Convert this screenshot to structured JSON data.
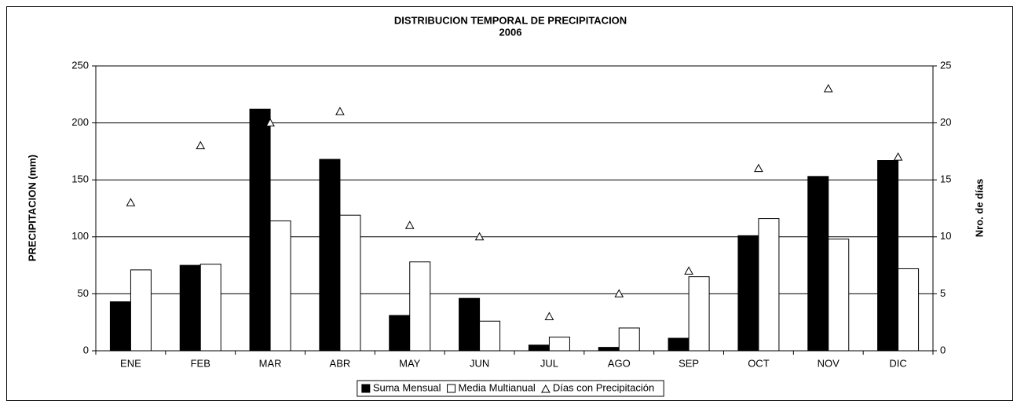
{
  "chart_data": {
    "type": "bar",
    "title": "DISTRIBUCION TEMPORAL DE PRECIPITACION",
    "subtitle": "2006",
    "y_label": "PRECIPITACION (mm)",
    "y2_label": "Nro. de días",
    "categories": [
      "ENE",
      "FEB",
      "MAR",
      "ABR",
      "MAY",
      "JUN",
      "JUL",
      "AGO",
      "SEP",
      "OCT",
      "NOV",
      "DIC"
    ],
    "series": [
      {
        "name": "Suma Mensual",
        "color": "#000000",
        "values": [
          43,
          75,
          212,
          168,
          31,
          46,
          5,
          3,
          11,
          101,
          153,
          167
        ]
      },
      {
        "name": "Media Multianual",
        "color": "#ffffff",
        "values": [
          71,
          76,
          114,
          119,
          78,
          26,
          12,
          20,
          65,
          116,
          98,
          72
        ]
      },
      {
        "name": "Días con Precipitación",
        "color": "#ffffff",
        "axis": "y2",
        "marker": "triangle",
        "values": [
          13,
          18,
          20,
          21,
          11,
          10,
          3,
          5,
          7,
          16,
          23,
          17
        ]
      }
    ],
    "ylim": [
      0,
      250
    ],
    "yticks": [
      0,
      50,
      100,
      150,
      200,
      250
    ],
    "y2lim": [
      0,
      25
    ],
    "y2ticks": [
      0,
      5,
      10,
      15,
      20,
      25
    ],
    "grid": true,
    "legend": "bottom"
  }
}
